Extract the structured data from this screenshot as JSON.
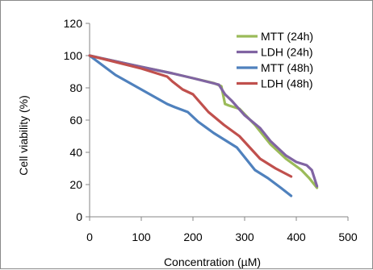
{
  "chart_data": {
    "type": "line",
    "title": "",
    "xlabel": "Concentration (µM)",
    "ylabel": "Cell viability (%)",
    "xlim": [
      0,
      500
    ],
    "ylim": [
      0,
      120
    ],
    "xticks": [
      0,
      100,
      200,
      300,
      400,
      500
    ],
    "yticks": [
      0,
      20,
      40,
      60,
      80,
      100,
      120
    ],
    "grid": false,
    "legend_position": "top-right",
    "series": [
      {
        "name": "MTT (24h)",
        "color": "#9bbb59",
        "x": [
          0,
          100,
          160,
          200,
          240,
          255,
          262,
          270,
          290,
          320,
          350,
          380,
          410,
          425,
          440
        ],
        "y": [
          100,
          93,
          89,
          86,
          83,
          81,
          70,
          69,
          67,
          57,
          45,
          36,
          29,
          24,
          18
        ]
      },
      {
        "name": "LDH (24h)",
        "color": "#8064a2",
        "x": [
          0,
          100,
          160,
          200,
          250,
          262,
          275,
          300,
          330,
          350,
          380,
          400,
          420,
          430,
          440
        ],
        "y": [
          100,
          93,
          89,
          86,
          82,
          76,
          72,
          63,
          55,
          47,
          38,
          34,
          32,
          29,
          19
        ]
      },
      {
        "name": "MTT (48h)",
        "color": "#4f81bd",
        "x": [
          0,
          50,
          100,
          150,
          165,
          190,
          210,
          240,
          260,
          285,
          300,
          320,
          345,
          370,
          390
        ],
        "y": [
          100,
          88,
          79,
          70,
          68,
          65,
          59,
          52,
          48,
          43,
          37,
          29,
          24,
          18,
          13
        ]
      },
      {
        "name": "LDH (48h)",
        "color": "#c0504d",
        "x": [
          0,
          100,
          150,
          160,
          180,
          200,
          230,
          260,
          290,
          310,
          330,
          360,
          390
        ],
        "y": [
          100,
          92,
          87,
          84,
          79,
          76,
          65,
          57,
          50,
          43,
          36,
          30,
          25
        ]
      }
    ]
  }
}
